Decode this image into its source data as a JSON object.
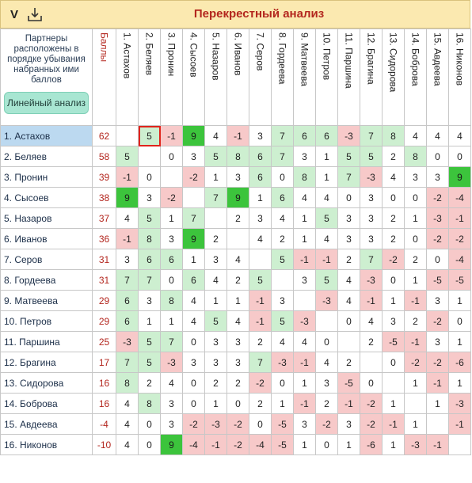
{
  "header": {
    "menu_label": "V",
    "title": "Перекрестный анализ"
  },
  "corner": {
    "caption": "Партнеры расположены в порядке убывания набранных ими баллов",
    "linear_button": "Линейный анализ",
    "score_header": "Баллы"
  },
  "columns": [
    "1. Астахов",
    "2. Беляев",
    "3. Пронин",
    "4. Сысоев",
    "5. Назаров",
    "6. Иванов",
    "7. Серов",
    "8. Гордеева",
    "9. Матвеева",
    "10. Петров",
    "11. Паршина",
    "12. Брагина",
    "13. Сидорова",
    "14. Боброва",
    "15. Авдеева",
    "16. Никонов"
  ],
  "rows": [
    {
      "name": "1. Астахов",
      "score": "62",
      "cells": [
        "",
        "5",
        "-1",
        "9",
        "4",
        "-1",
        "3",
        "7",
        "6",
        "6",
        "-3",
        "7",
        "8",
        "4",
        "4",
        "4"
      ]
    },
    {
      "name": "2. Беляев",
      "score": "58",
      "cells": [
        "5",
        "",
        "0",
        "3",
        "5",
        "8",
        "6",
        "7",
        "3",
        "1",
        "5",
        "5",
        "2",
        "8",
        "0",
        "0"
      ]
    },
    {
      "name": "3. Пронин",
      "score": "39",
      "cells": [
        "-1",
        "0",
        "",
        "-2",
        "1",
        "3",
        "6",
        "0",
        "8",
        "1",
        "7",
        "-3",
        "4",
        "3",
        "3",
        "9"
      ]
    },
    {
      "name": "4. Сысоев",
      "score": "38",
      "cells": [
        "9",
        "3",
        "-2",
        "",
        "7",
        "9",
        "1",
        "6",
        "4",
        "4",
        "0",
        "3",
        "0",
        "0",
        "-2",
        "-4"
      ]
    },
    {
      "name": "5. Назаров",
      "score": "37",
      "cells": [
        "4",
        "5",
        "1",
        "7",
        "",
        "2",
        "3",
        "4",
        "1",
        "5",
        "3",
        "3",
        "2",
        "1",
        "-3",
        "-1"
      ]
    },
    {
      "name": "6. Иванов",
      "score": "36",
      "cells": [
        "-1",
        "8",
        "3",
        "9",
        "2",
        "",
        "4",
        "2",
        "1",
        "4",
        "3",
        "3",
        "2",
        "0",
        "-2",
        "-2"
      ]
    },
    {
      "name": "7. Серов",
      "score": "31",
      "cells": [
        "3",
        "6",
        "6",
        "1",
        "3",
        "4",
        "",
        "5",
        "-1",
        "-1",
        "2",
        "7",
        "-2",
        "2",
        "0",
        "-4"
      ]
    },
    {
      "name": "8. Гордеева",
      "score": "31",
      "cells": [
        "7",
        "7",
        "0",
        "6",
        "4",
        "2",
        "5",
        "",
        "3",
        "5",
        "4",
        "-3",
        "0",
        "1",
        "-5",
        "-5"
      ]
    },
    {
      "name": "9. Матвеева",
      "score": "29",
      "cells": [
        "6",
        "3",
        "8",
        "4",
        "1",
        "1",
        "-1",
        "3",
        "",
        "-3",
        "4",
        "-1",
        "1",
        "-1",
        "3",
        "1"
      ]
    },
    {
      "name": "10. Петров",
      "score": "29",
      "cells": [
        "6",
        "1",
        "1",
        "4",
        "5",
        "4",
        "-1",
        "5",
        "-3",
        "",
        "0",
        "4",
        "3",
        "2",
        "-2",
        "0"
      ]
    },
    {
      "name": "11. Паршина",
      "score": "25",
      "cells": [
        "-3",
        "5",
        "7",
        "0",
        "3",
        "3",
        "2",
        "4",
        "4",
        "0",
        "",
        "2",
        "-5",
        "-1",
        "3",
        "1"
      ]
    },
    {
      "name": "12. Брагина",
      "score": "17",
      "cells": [
        "7",
        "5",
        "-3",
        "3",
        "3",
        "3",
        "7",
        "-3",
        "-1",
        "4",
        "2",
        "",
        "0",
        "-2",
        "-2",
        "-6"
      ]
    },
    {
      "name": "13. Сидорова",
      "score": "16",
      "cells": [
        "8",
        "2",
        "4",
        "0",
        "2",
        "2",
        "-2",
        "0",
        "1",
        "3",
        "-5",
        "0",
        "",
        "1",
        "-1",
        "1"
      ]
    },
    {
      "name": "14. Боброва",
      "score": "16",
      "cells": [
        "4",
        "8",
        "3",
        "0",
        "1",
        "0",
        "2",
        "1",
        "-1",
        "2",
        "-1",
        "-2",
        "1",
        "",
        "1",
        "-3"
      ]
    },
    {
      "name": "15. Авдеева",
      "score": "-4",
      "cells": [
        "4",
        "0",
        "3",
        "-2",
        "-3",
        "-2",
        "0",
        "-5",
        "3",
        "-2",
        "3",
        "-2",
        "-1",
        "1",
        "",
        "-1"
      ]
    },
    {
      "name": "16. Никонов",
      "score": "-10",
      "cells": [
        "4",
        "0",
        "9",
        "-4",
        "-1",
        "-2",
        "-4",
        "-5",
        "1",
        "0",
        "1",
        "-6",
        "1",
        "-3",
        "-1",
        ""
      ]
    }
  ],
  "colors": {
    "header_bg": "#fbe9b0",
    "title": "#b3261e",
    "strong_green": "#3cc43c",
    "light_green": "#cdefd0",
    "pink": "#f7c9c9",
    "selected_row": "#bcd9f0",
    "highlight_border": "#e0241c"
  },
  "icons": {
    "menu": "v-letter",
    "download": "download-icon"
  }
}
